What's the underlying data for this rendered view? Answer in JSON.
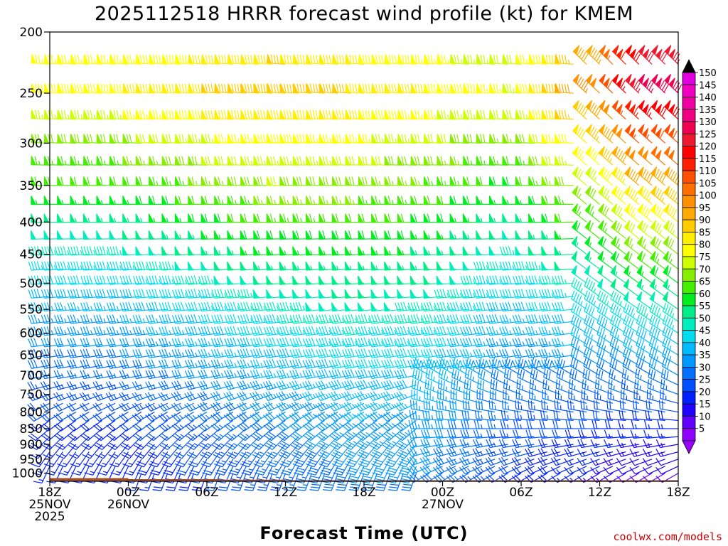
{
  "chart_data": {
    "type": "wind_barb_time_height",
    "title": "2025112518 HRRR forecast wind profile (kt) for KMEM",
    "xlabel": "Forecast Time (UTC)",
    "ylabel": "",
    "credit": "coolwx.com/models",
    "y_axis": {
      "scale": "log",
      "inverted": true,
      "range": [
        1000,
        200
      ],
      "ticks": [
        200,
        250,
        300,
        350,
        400,
        450,
        500,
        550,
        600,
        650,
        700,
        750,
        800,
        850,
        900,
        950,
        1000
      ]
    },
    "x_axis": {
      "range_hours": [
        0,
        48
      ],
      "ticks": [
        {
          "hour": 0,
          "lines": [
            "18Z",
            "25NOV",
            "2025"
          ]
        },
        {
          "hour": 6,
          "lines": [
            "00Z",
            "26NOV"
          ]
        },
        {
          "hour": 12,
          "lines": [
            "06Z"
          ]
        },
        {
          "hour": 18,
          "lines": [
            "12Z"
          ]
        },
        {
          "hour": 24,
          "lines": [
            "18Z"
          ]
        },
        {
          "hour": 30,
          "lines": [
            "00Z",
            "27NOV"
          ]
        },
        {
          "hour": 36,
          "lines": [
            "06Z"
          ]
        },
        {
          "hour": 42,
          "lines": [
            "12Z"
          ]
        },
        {
          "hour": 48,
          "lines": [
            "18Z"
          ]
        }
      ]
    },
    "colorbar": {
      "labels": [
        150,
        145,
        140,
        135,
        130,
        125,
        120,
        115,
        110,
        105,
        100,
        95,
        90,
        85,
        80,
        75,
        70,
        65,
        60,
        55,
        50,
        45,
        40,
        35,
        30,
        25,
        20,
        15,
        10,
        5
      ],
      "colors": [
        "#e000e0",
        "#f000c0",
        "#f000a0",
        "#f00080",
        "#f00050",
        "#f01830",
        "#ff0000",
        "#ff2000",
        "#ff5000",
        "#ff7000",
        "#ff9000",
        "#ffaa00",
        "#ffcc00",
        "#ffee00",
        "#ffff00",
        "#ccff00",
        "#88ee00",
        "#44ee00",
        "#00ee20",
        "#00ee88",
        "#00eebb",
        "#00ddee",
        "#00bbff",
        "#0099ff",
        "#0070ff",
        "#0050ff",
        "#0020ff",
        "#2000ff",
        "#6000ff",
        "#9000ff"
      ],
      "top_arrow_color": "#000000",
      "bottom_arrow_color": "#9900ff"
    },
    "levels_hpa": [
      1000,
      975,
      950,
      925,
      900,
      875,
      850,
      825,
      800,
      775,
      750,
      725,
      700,
      675,
      650,
      625,
      600,
      575,
      550,
      525,
      500,
      475,
      450,
      425,
      400,
      375,
      350,
      325,
      300,
      275,
      250,
      225
    ],
    "forecast_hours": [
      0,
      1,
      2,
      3,
      4,
      5,
      6,
      7,
      8,
      9,
      10,
      11,
      12,
      13,
      14,
      15,
      16,
      17,
      18,
      19,
      20,
      21,
      22,
      23,
      24,
      25,
      26,
      27,
      28,
      29,
      30,
      31,
      32,
      33,
      34,
      35,
      36,
      37,
      38,
      39,
      40,
      41,
      42,
      43,
      44,
      45,
      46,
      47,
      48
    ],
    "wind_field_summary": {
      "upper_jet_kt_250hpa": [
        80,
        80,
        85,
        90,
        85,
        80,
        75,
        100,
        125,
        130
      ],
      "upper_jet_hours": [
        0,
        6,
        12,
        18,
        24,
        30,
        36,
        42,
        45,
        48
      ],
      "low_level_kt_900hpa": [
        15,
        15,
        20,
        25,
        30,
        30,
        20,
        15,
        10,
        10
      ],
      "low_level_hours": [
        0,
        6,
        12,
        18,
        24,
        30,
        36,
        42,
        45,
        48
      ]
    },
    "surface_pressure_hpa": [
      {
        "hour_start": 0,
        "hour_end": 6,
        "p": 1018
      },
      {
        "hour_start": 6,
        "hour_end": 13,
        "p": 1022
      },
      {
        "hour_start": 13,
        "hour_end": 18,
        "p": 1024
      },
      {
        "hour_start": 18,
        "hour_end": 48,
        "p": 1026
      }
    ],
    "surface_fill_color": "#a0522d",
    "grid": false,
    "legend": "colorbar-right"
  }
}
